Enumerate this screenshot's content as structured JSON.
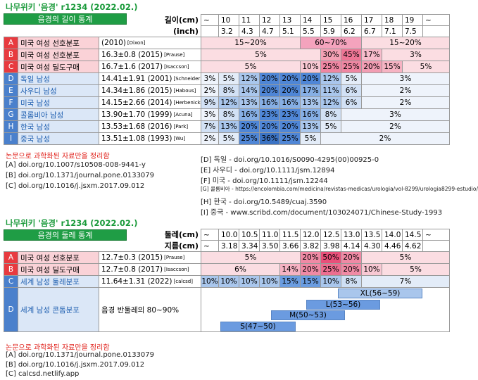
{
  "sections": [
    {
      "title": "나무위키 '음경' r1234 (2022.02.)",
      "subtitle": "음경의 길이 통계",
      "header_labels": [
        "길이(cm)",
        "(inch)"
      ],
      "header_rows": [
        [
          "~",
          "10",
          "11",
          "12",
          "13",
          "14",
          "15",
          "16",
          "17",
          "18",
          "19",
          "~"
        ],
        [
          null,
          "3.2",
          "4.3",
          "4.7",
          "5.1",
          "5.5",
          "5.9",
          "6.2",
          "6.7",
          "7.1",
          "7.5",
          null
        ]
      ],
      "rows": [
        {
          "letter": "A",
          "name": "미국 여성 선호분포",
          "source": "(2010)",
          "cite": "[Dixon]",
          "cells": [
            {
              "text": "15~20%",
              "color": "#fbdde2"
            },
            {
              "text": "60~70%",
              "color": "#f4a3bd"
            },
            {
              "text": "15~20%",
              "color": "#fbdde2"
            }
          ]
        },
        {
          "letter": "B",
          "name": "미국 여성 선호분포",
          "source": "16.3±0.8 (2015)",
          "cite": "[Prause]",
          "cells": [
            {
              "text": "5%",
              "color": "#fbdde2"
            },
            {
              "text": "30%",
              "color": "#f4a0b4"
            },
            {
              "text": "45%",
              "color": "#ee7595"
            },
            {
              "text": "17%",
              "color": "#f7bccb"
            },
            {
              "text": "3%",
              "color": "#fbdde2"
            }
          ]
        },
        {
          "letter": "C",
          "name": "미국 여성 딜도구매",
          "source": "16.7±1.6 (2017)",
          "cite": "[Isaccson]",
          "cells": [
            {
              "text": "5%",
              "color": "#fbdde2"
            },
            {
              "text": "10%",
              "color": "#f8c8d3"
            },
            {
              "text": "25%",
              "color": "#ef86a2"
            },
            {
              "text": "25%",
              "color": "#ef86a2"
            },
            {
              "text": "20%",
              "color": "#f29db3"
            },
            {
              "text": "15%",
              "color": "#f6b3c3"
            },
            {
              "text": "5%",
              "color": "#fbdde2"
            }
          ]
        },
        {
          "letter": "D",
          "name": "독일 남성",
          "source": "14.41±1.91 (2001)",
          "cite": "[Schneider]",
          "cells": [
            {
              "text": "3%",
              "color": "#eef3fb"
            },
            {
              "text": "5%",
              "color": "#e3ecf8"
            },
            {
              "text": "12%",
              "color": "#a9c6ec"
            },
            {
              "text": "20%",
              "color": "#4f86d6"
            },
            {
              "text": "20%",
              "color": "#4f86d6"
            },
            {
              "text": "20%",
              "color": "#4f86d6"
            },
            {
              "text": "12%",
              "color": "#a9c6ec"
            },
            {
              "text": "5%",
              "color": "#e3ecf8"
            },
            {
              "text": "3%",
              "color": "#eef3fb"
            }
          ]
        },
        {
          "letter": "E",
          "name": "사우디 남성",
          "source": "14.34±1.86 (2015)",
          "cite": "[Habous]",
          "cells": [
            {
              "text": "2%",
              "color": "#eef3fb"
            },
            {
              "text": "8%",
              "color": "#d2e1f5"
            },
            {
              "text": "14%",
              "color": "#a9c6ec"
            },
            {
              "text": "20%",
              "color": "#4f86d6"
            },
            {
              "text": "20%",
              "color": "#4f86d6"
            },
            {
              "text": "17%",
              "color": "#86afe5"
            },
            {
              "text": "11%",
              "color": "#a9c6ec"
            },
            {
              "text": "6%",
              "color": "#d2e1f5"
            },
            {
              "text": "2%",
              "color": "#eef3fb"
            }
          ]
        },
        {
          "letter": "F",
          "name": "미국 남성",
          "source": "14.15±2.66 (2014)",
          "cite": "[Herbenick]",
          "cells": [
            {
              "text": "9%",
              "color": "#d2e1f5"
            },
            {
              "text": "12%",
              "color": "#a9c6ec"
            },
            {
              "text": "13%",
              "color": "#a9c6ec"
            },
            {
              "text": "16%",
              "color": "#86afe5"
            },
            {
              "text": "16%",
              "color": "#86afe5"
            },
            {
              "text": "13%",
              "color": "#a9c6ec"
            },
            {
              "text": "12%",
              "color": "#a9c6ec"
            },
            {
              "text": "6%",
              "color": "#d2e1f5"
            },
            {
              "text": "2%",
              "color": "#eef3fb"
            }
          ]
        },
        {
          "letter": "G",
          "name": "콜롬비아 남성",
          "source": "13.90±1.70 (1999)",
          "cite": "[Acuna]",
          "cells": [
            {
              "text": "3%",
              "color": "#eef3fb"
            },
            {
              "text": "8%",
              "color": "#d2e1f5"
            },
            {
              "text": "16%",
              "color": "#86afe5"
            },
            {
              "text": "23%",
              "color": "#4f86d6"
            },
            {
              "text": "23%",
              "color": "#4f86d6"
            },
            {
              "text": "16%",
              "color": "#86afe5"
            },
            {
              "text": "8%",
              "color": "#d2e1f5"
            },
            {
              "text": "3%",
              "color": "#eef3fb"
            }
          ]
        },
        {
          "letter": "H",
          "name": "한국 남성",
          "source": "13.53±1.68 (2016)",
          "cite": "[Park]",
          "cells": [
            {
              "text": "7%",
              "color": "#d2e1f5"
            },
            {
              "text": "13%",
              "color": "#a9c6ec"
            },
            {
              "text": "20%",
              "color": "#4f86d6"
            },
            {
              "text": "20%",
              "color": "#4f86d6"
            },
            {
              "text": "20%",
              "color": "#4f86d6"
            },
            {
              "text": "13%",
              "color": "#a9c6ec"
            },
            {
              "text": "5%",
              "color": "#e3ecf8"
            },
            {
              "text": "2%",
              "color": "#eef3fb"
            }
          ]
        },
        {
          "letter": "I",
          "name": "중국 남성",
          "source": "13.51±1.08 (1993)",
          "cite": "[Wu]",
          "cells": [
            {
              "text": "2%",
              "color": "#eef3fb"
            },
            {
              "text": "5%",
              "color": "#e3ecf8"
            },
            {
              "text": "25%",
              "color": "#4f86d6"
            },
            {
              "text": "36%",
              "color": "#3b73c4"
            },
            {
              "text": "25%",
              "color": "#4f86d6"
            },
            {
              "text": "5%",
              "color": "#e3ecf8"
            },
            {
              "text": "2%",
              "color": "#eef3fb"
            }
          ]
        }
      ],
      "note": "논문으로 과학화된 자료만을 정리함",
      "refs_left": [
        "[A] doi.org/10.1007/s10508-008-9441-y",
        "[B] doi.org/10.1371/journal.pone.0133079",
        "[C] doi.org/10.1016/j.jsxm.2017.09.012"
      ],
      "refs_right": [
        "[D] 독일 - doi.org/10.1016/S0090-4295(00)00925-0",
        "[E] 사우디 - doi.org/10.1111/jsm.12894",
        "[F] 미국 - doi.org/10.1111/jsm.12244",
        "[G] 콜롬비아 - https://encolombia.com/medicina/revistas-medicas/urologia/vol-8299/urologia8299-estudio/",
        "[H] 한국 - doi.org/10.5489/cuaj.3590",
        "[I] 중국 - www.scribd.com/document/103024071/Chinese-Study-1993"
      ]
    },
    {
      "title": "나무위키 '음경' r1234 (2022.02.)",
      "subtitle": "음경의 둘레 통계",
      "header_labels": [
        "둘레(cm)",
        "지름(cm)"
      ],
      "header_rows": [
        [
          "~",
          "10.0",
          "10.5",
          "11.0",
          "11.5",
          "12.0",
          "12.5",
          "13.0",
          "13.5",
          "14.0",
          "14.5",
          "~"
        ],
        [
          "~",
          "3.18",
          "3.34",
          "3.50",
          "3.66",
          "3.82",
          "3.98",
          "4.14",
          "4.30",
          "4.46",
          "4.62",
          null
        ]
      ],
      "rows": [
        {
          "letter": "A",
          "name": "미국 여성 선호분포",
          "source": "12.7±0.3 (2015)",
          "cite": "[Prause]",
          "cells": [
            {
              "text": "5%",
              "color": "#fbdde2"
            },
            {
              "text": "20%",
              "color": "#f08aa5"
            },
            {
              "text": "50%",
              "color": "#e8507a"
            },
            {
              "text": "20%",
              "color": "#f08aa5"
            },
            {
              "text": "5%",
              "color": "#fbdde2"
            }
          ]
        },
        {
          "letter": "B",
          "name": "미국 여성 딜도구매",
          "source": "12.7±0.8 (2017)",
          "cite": "[Isaccson]",
          "cells": [
            {
              "text": "6%",
              "color": "#fbdde2"
            },
            {
              "text": "14%",
              "color": "#f6b3c3"
            },
            {
              "text": "20%",
              "color": "#f08aa5"
            },
            {
              "text": "25%",
              "color": "#ec6e90"
            },
            {
              "text": "20%",
              "color": "#f08aa5"
            },
            {
              "text": "10%",
              "color": "#f8c8d3"
            },
            {
              "text": "5%",
              "color": "#fbdde2"
            }
          ]
        },
        {
          "letter": "C",
          "name": "세계 남성 둘레분포",
          "source": "11.64±1.31 (2022)",
          "cite": "[calcsd]",
          "cells": [
            {
              "text": "10%",
              "color": "#a9c6ec"
            },
            {
              "text": "10%",
              "color": "#a9c6ec"
            },
            {
              "text": "10%",
              "color": "#a9c6ec"
            },
            {
              "text": "10%",
              "color": "#a9c6ec"
            },
            {
              "text": "15%",
              "color": "#6a9ce0"
            },
            {
              "text": "15%",
              "color": "#6a9ce0"
            },
            {
              "text": "10%",
              "color": "#a9c6ec"
            },
            {
              "text": "8%",
              "color": "#cfdff4"
            },
            {
              "text": "7%",
              "color": "#e3ecf8"
            }
          ]
        },
        {
          "letter": "D",
          "name": "세계 남성 콘돔분포",
          "source": "음경 반둘레의 80~90%",
          "bars": [
            "XL(56~59)",
            "L(53~56)",
            "M(50~53)",
            "S(47~50)"
          ]
        }
      ],
      "note": "논문으로 과학화된 자료만을 정리함",
      "refs_left": [
        "[A] doi.org/10.1371/journal.pone.0133079",
        "[B] doi.org/10.1016/j.jsxm.2017.09.012",
        "[C] calcsd.netlify.app"
      ]
    }
  ]
}
